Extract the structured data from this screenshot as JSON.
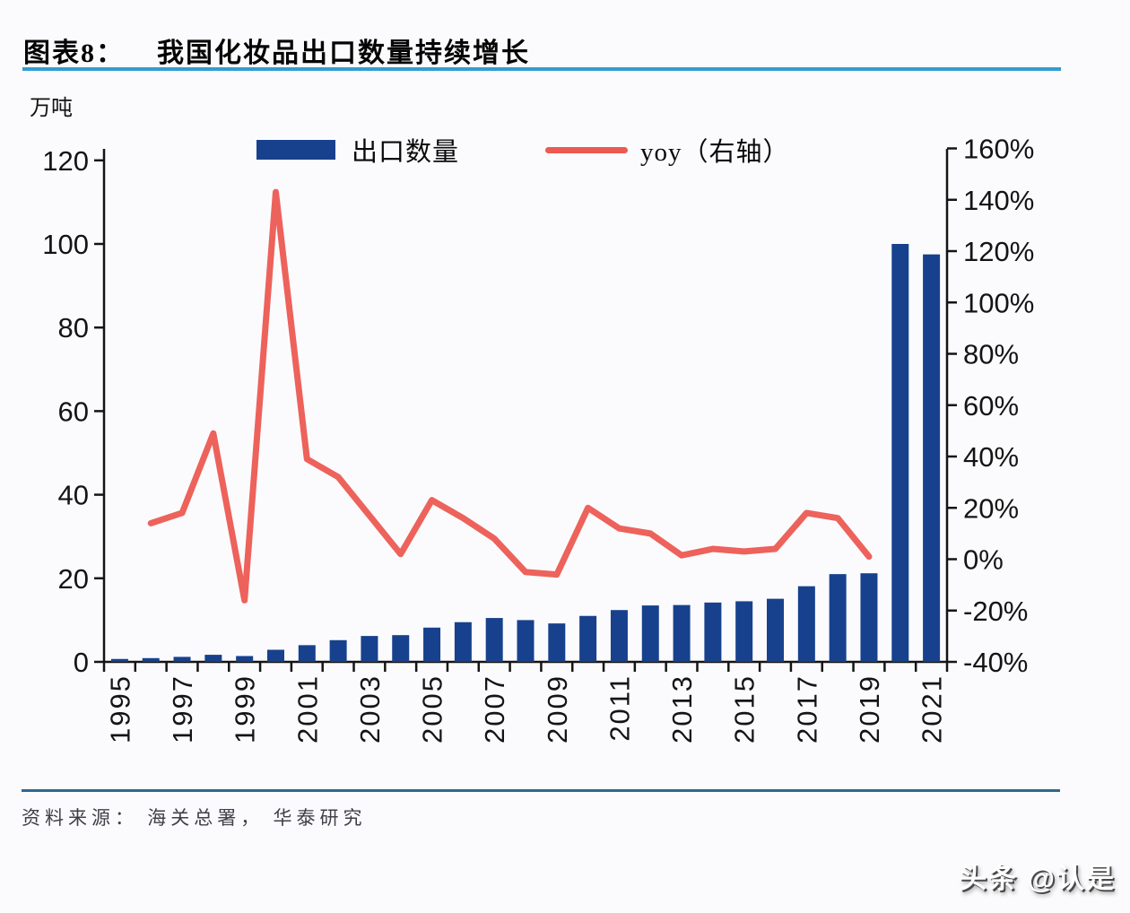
{
  "header": {
    "label": "图表8：",
    "title": "我国化妆品出口数量持续增长"
  },
  "legend": {
    "bars_label": "出口数量",
    "line_label": "yoy（右轴）"
  },
  "unit_label": "万吨",
  "footer": {
    "source": "资料来源： 海关总署， 华泰研究"
  },
  "watermark": "头条 @认是",
  "colors": {
    "bar": "#17418d",
    "line": "#ec5a52",
    "title_underline": "#359bd2",
    "divider": "#2d6791",
    "axis": "#141414"
  },
  "chart_data": {
    "type": "bar",
    "title": "我国化妆品出口数量持续增长",
    "categories": [
      1995,
      1996,
      1997,
      1998,
      1999,
      2000,
      2001,
      2002,
      2003,
      2004,
      2005,
      2006,
      2007,
      2008,
      2009,
      2010,
      2011,
      2012,
      2013,
      2014,
      2015,
      2016,
      2017,
      2018,
      2019,
      2020,
      2021
    ],
    "series": [
      {
        "name": "出口数量",
        "type": "bar",
        "axis": "left",
        "unit": "万吨",
        "values": [
          0.7,
          0.9,
          1.2,
          1.7,
          1.4,
          2.9,
          4.0,
          5.2,
          6.2,
          6.4,
          8.2,
          9.5,
          10.5,
          10.0,
          9.2,
          11.0,
          12.4,
          13.5,
          13.6,
          14.2,
          14.5,
          15.1,
          18.1,
          21.0,
          21.2,
          100.0,
          97.5
        ]
      },
      {
        "name": "yoy（右轴）",
        "type": "line",
        "axis": "right",
        "unit": "%",
        "values": [
          null,
          14,
          18,
          49,
          -16,
          143,
          39,
          32,
          17,
          2,
          23,
          16,
          8,
          -5,
          -6,
          20,
          12,
          10,
          1.5,
          4,
          3,
          4,
          18,
          16,
          1,
          null,
          null
        ]
      }
    ],
    "left_axis": {
      "label": "万吨",
      "min": 0,
      "max": 120,
      "step": 20
    },
    "right_axis": {
      "min": -40,
      "max": 160,
      "step": 20,
      "format": "percent"
    },
    "x_tick_labels": [
      "1995",
      "1997",
      "1999",
      "2001",
      "2003",
      "2005",
      "2007",
      "2009",
      "2011",
      "2013",
      "2015",
      "2017",
      "2019",
      "2021"
    ],
    "grid": false,
    "legend_position": "top-center"
  }
}
